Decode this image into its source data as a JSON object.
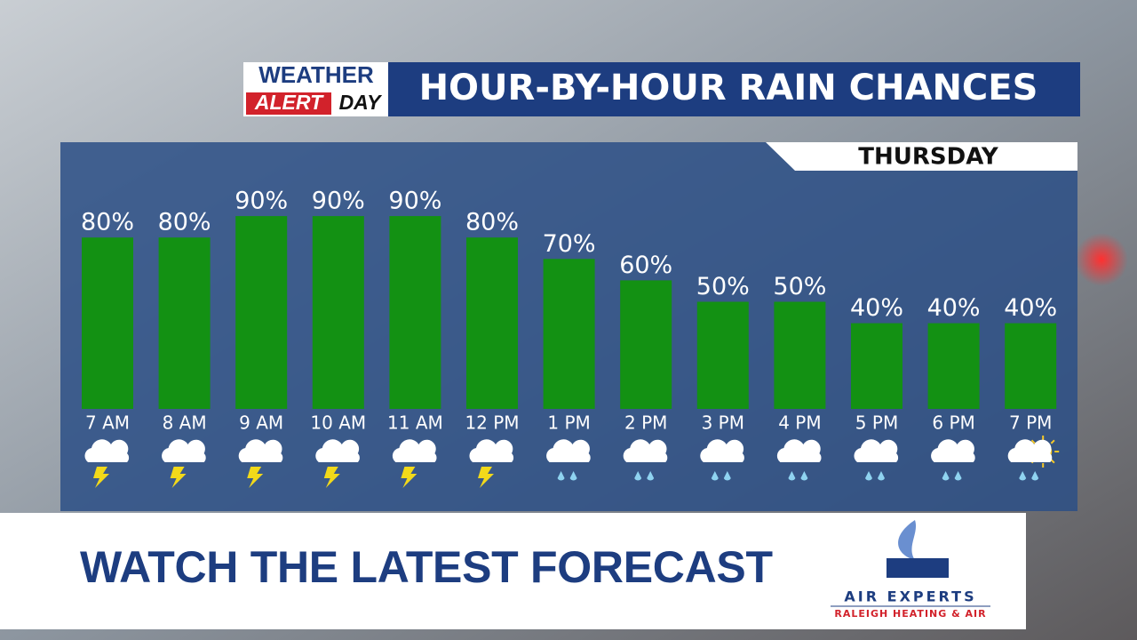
{
  "logo": {
    "line1": "WEATHER",
    "line2": "ALERT",
    "line3": "DAY"
  },
  "chart_data": {
    "type": "bar",
    "title": "HOUR-BY-HOUR RAIN CHANCES",
    "subtitle": "THURSDAY",
    "categories": [
      "7 AM",
      "8 AM",
      "9 AM",
      "10 AM",
      "11 AM",
      "12 PM",
      "1 PM",
      "2 PM",
      "3 PM",
      "4 PM",
      "5 PM",
      "6 PM",
      "7 PM"
    ],
    "values": [
      80,
      80,
      90,
      90,
      90,
      80,
      70,
      60,
      50,
      50,
      40,
      40,
      40
    ],
    "value_labels": [
      "80%",
      "80%",
      "90%",
      "90%",
      "90%",
      "80%",
      "70%",
      "60%",
      "50%",
      "50%",
      "40%",
      "40%",
      "40%"
    ],
    "color": "#139113"
  },
  "footer": {
    "headline": "WATCH THE LATEST FORECAST",
    "sponsor": "AIR EXPERTS",
    "sponsor_tagline": "RALEIGH HEATING & AIR"
  }
}
